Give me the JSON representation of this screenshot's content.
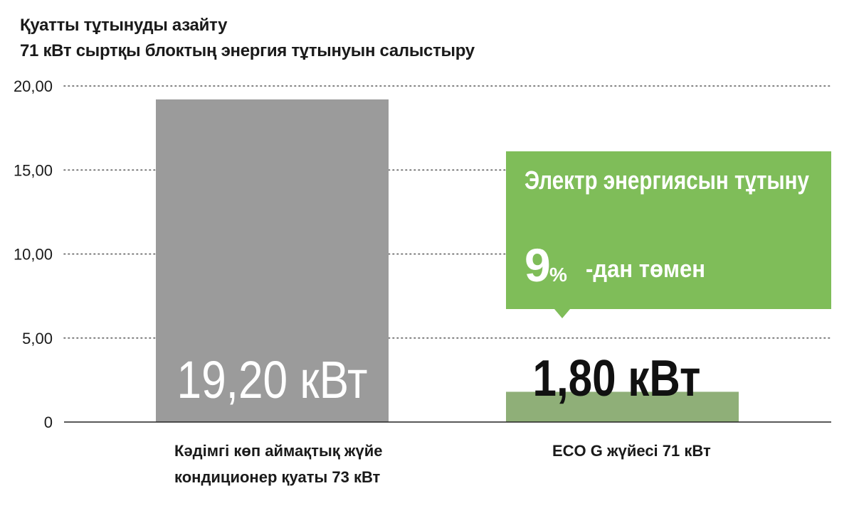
{
  "chart_data": {
    "type": "bar",
    "title": "Қуатты тұтынуды азайту",
    "subtitle": "71 кВт сыртқы блоктың энергия тұтынуын салыстыру",
    "xlabel": "",
    "ylabel": "",
    "ylim": [
      0,
      20
    ],
    "y_ticks": [
      "0",
      "5,00",
      "10,00",
      "15,00",
      "20,00"
    ],
    "y_tick_values": [
      0,
      5,
      10,
      15,
      20
    ],
    "grid": "dotted-horizontal",
    "categories": [
      [
        "Кәдімгі көп аймақтық жүйе",
        "кондиционер қуаты 73 кВт"
      ],
      [
        "ECO G жүйесі 71 кВт"
      ]
    ],
    "values": [
      19.2,
      1.8
    ],
    "value_labels": [
      "19,20 кВт",
      "1,80 кВт"
    ],
    "bar_colors": [
      "#9b9b9b",
      "#8faf78"
    ],
    "callout": {
      "line1": "Электр энергиясын тұтыну",
      "number": "9",
      "percent": "%",
      "suffix": "-дан төмен",
      "color": "#7fbd59"
    }
  }
}
